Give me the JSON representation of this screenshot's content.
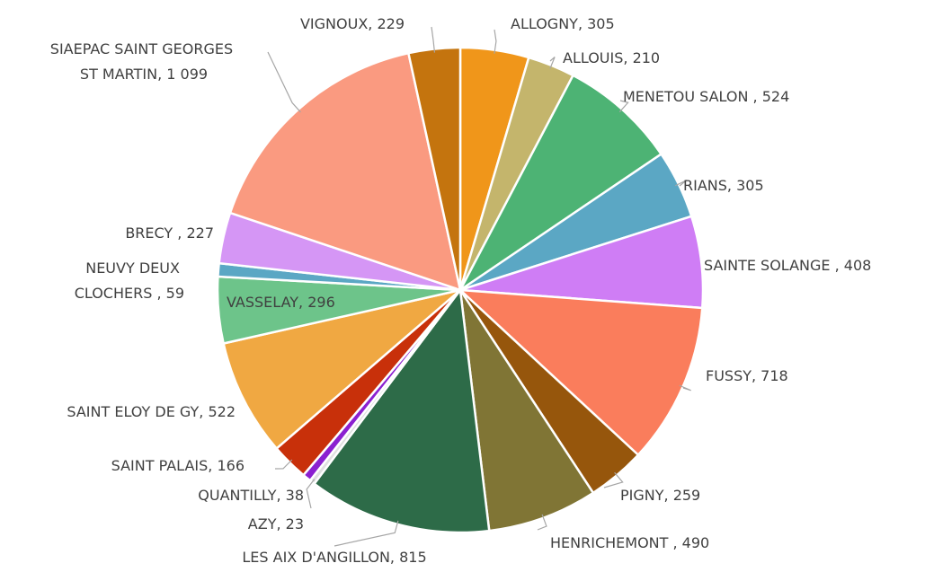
{
  "chart_data": {
    "type": "pie",
    "categories": [
      "ALLOGNY",
      "ALLOUIS",
      "MENETOU SALON ",
      "RIANS",
      "SAINTE SOLANGE ",
      "FUSSY",
      "PIGNY",
      "HENRICHEMONT ",
      "LES AIX D'ANGILLON",
      "AZY",
      "QUANTILLY",
      "SAINT PALAIS",
      "SAINT ELOY DE GY",
      "VASSELAY",
      "NEUVY DEUX CLOCHERS ",
      "BRECY ",
      "SIAEPAC SAINT GEORGES ST MARTIN",
      "VIGNOUX"
    ],
    "values": [
      305,
      210,
      524,
      305,
      408,
      718,
      259,
      490,
      815,
      23,
      38,
      166,
      522,
      296,
      59,
      227,
      1099,
      229
    ],
    "value_labels": [
      "305",
      "210",
      "524",
      "305",
      "408",
      "718",
      "259",
      "490",
      "815",
      "23",
      "38",
      "166",
      "522",
      "296",
      "59",
      "227",
      "1 099",
      "229"
    ],
    "label_separator": ", ",
    "colors": [
      "#f0961a",
      "#c4b56c",
      "#4db374",
      "#5ba7c4",
      "#cf7df5",
      "#fa7d5c",
      "#96560c",
      "#807535",
      "#2d6b48",
      "#e0e0e0",
      "#8b20d0",
      "#c8300a",
      "#f0a842",
      "#6dc48a",
      "#5ba7c4",
      "#d596f5",
      "#fa9a80",
      "#c4740e"
    ]
  }
}
